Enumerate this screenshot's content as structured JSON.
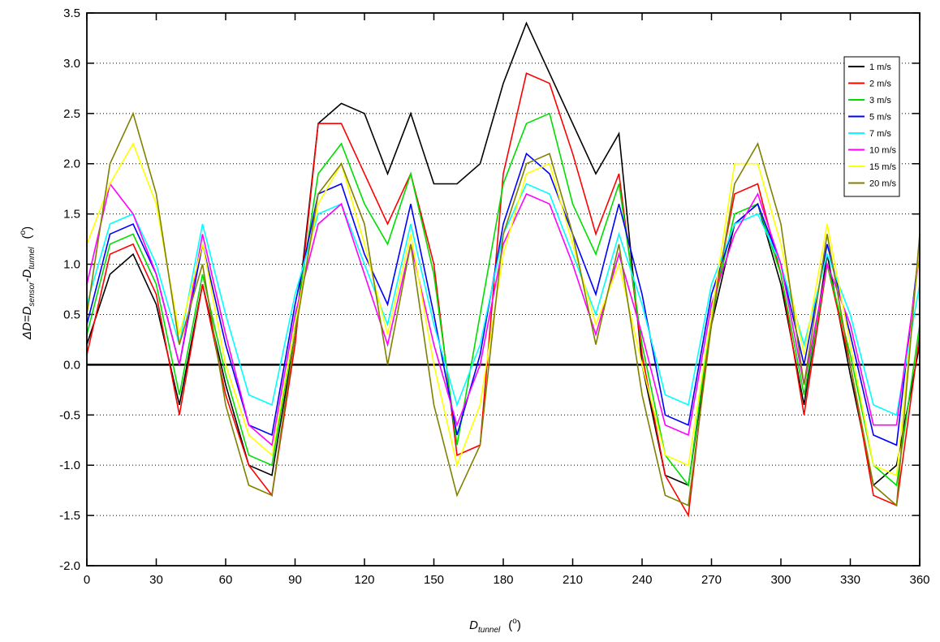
{
  "chart_data": {
    "type": "line",
    "xlabel": [
      "D",
      "tunnel",
      "(",
      "o",
      ")"
    ],
    "ylabel": [
      "ΔD=D",
      "sensor",
      "-D",
      "tunnel",
      "(",
      "o",
      ")"
    ],
    "x": [
      0,
      10,
      20,
      30,
      40,
      50,
      60,
      70,
      80,
      90,
      100,
      110,
      120,
      130,
      140,
      150,
      160,
      170,
      180,
      190,
      200,
      210,
      220,
      230,
      240,
      250,
      260,
      270,
      280,
      290,
      300,
      310,
      320,
      330,
      340,
      350,
      360
    ],
    "xlim": [
      0,
      360
    ],
    "xticks": [
      0,
      30,
      60,
      90,
      120,
      150,
      180,
      210,
      240,
      270,
      300,
      330,
      360
    ],
    "ylim": [
      -2.0,
      3.5
    ],
    "yticks": [
      {
        "value": -2,
        "label": "-2.0"
      },
      -0.5,
      {
        "value": -1,
        "label": "-1.0"
      },
      -1.5,
      {
        "value": 0,
        "label": "0.0"
      },
      0.5,
      {
        "value": 1,
        "label": "1.0"
      },
      1.5,
      {
        "value": 2,
        "label": "2.0"
      },
      2.5,
      {
        "value": 3,
        "label": "3.0"
      },
      3.5
    ],
    "grid": true,
    "legend": "top-right",
    "series": [
      {
        "name": "1 m/s",
        "color": "#000000",
        "values": [
          0.2,
          0.9,
          1.1,
          0.6,
          -0.4,
          0.8,
          -0.2,
          -1.0,
          -1.1,
          0.3,
          2.4,
          2.6,
          2.5,
          1.9,
          2.5,
          1.8,
          1.8,
          2.0,
          2.8,
          3.4,
          2.9,
          2.4,
          1.9,
          2.3,
          0.0,
          -1.1,
          -1.2,
          0.4,
          1.4,
          1.6,
          0.8,
          -0.4,
          1.1,
          -0.1,
          -1.2,
          -1.0,
          0.2
        ]
      },
      {
        "name": "2 m/s",
        "color": "#ff0000",
        "values": [
          0.1,
          1.1,
          1.2,
          0.7,
          -0.5,
          0.8,
          -0.3,
          -1.0,
          -1.3,
          0.2,
          2.4,
          2.4,
          1.9,
          1.4,
          1.9,
          1.0,
          -0.9,
          -0.8,
          1.9,
          2.9,
          2.8,
          2.1,
          1.3,
          1.9,
          0.1,
          -1.1,
          -1.5,
          0.5,
          1.7,
          1.8,
          0.9,
          -0.5,
          1.0,
          0.0,
          -1.3,
          -1.4,
          0.3
        ]
      },
      {
        "name": "3 m/s",
        "color": "#00dd00",
        "values": [
          0.3,
          1.2,
          1.3,
          0.8,
          -0.3,
          0.9,
          -0.1,
          -0.9,
          -1.0,
          0.4,
          1.9,
          2.2,
          1.6,
          1.2,
          1.9,
          0.9,
          -0.8,
          0.5,
          1.8,
          2.4,
          2.5,
          1.6,
          1.1,
          1.8,
          0.2,
          -0.9,
          -1.2,
          0.5,
          1.5,
          1.6,
          0.9,
          -0.3,
          1.0,
          0.1,
          -1.0,
          -1.2,
          0.4
        ]
      },
      {
        "name": "5 m/s",
        "color": "#0000ff",
        "values": [
          0.4,
          1.3,
          1.4,
          0.9,
          0.0,
          1.2,
          0.2,
          -0.6,
          -0.7,
          0.6,
          1.7,
          1.8,
          1.1,
          0.6,
          1.6,
          0.5,
          -0.7,
          0.1,
          1.4,
          2.1,
          1.9,
          1.3,
          0.7,
          1.6,
          0.7,
          -0.5,
          -0.6,
          0.7,
          1.4,
          1.6,
          1.0,
          0.0,
          1.2,
          0.3,
          -0.7,
          -0.8,
          1.2
        ]
      },
      {
        "name": "7 m/s",
        "color": "#00ffff",
        "values": [
          0.6,
          1.4,
          1.5,
          1.0,
          0.2,
          1.4,
          0.5,
          -0.3,
          -0.4,
          0.7,
          1.5,
          1.6,
          1.0,
          0.4,
          1.4,
          0.4,
          -0.4,
          0.2,
          1.3,
          1.8,
          1.7,
          1.1,
          0.5,
          1.3,
          0.6,
          -0.3,
          -0.4,
          0.8,
          1.4,
          1.5,
          1.0,
          0.2,
          1.1,
          0.5,
          -0.4,
          -0.5,
          0.8
        ]
      },
      {
        "name": "10 m/s",
        "color": "#ff00ff",
        "values": [
          0.8,
          1.8,
          1.5,
          0.9,
          0.0,
          1.3,
          0.3,
          -0.6,
          -0.8,
          0.5,
          1.4,
          1.6,
          0.9,
          0.2,
          1.2,
          0.2,
          -0.6,
          0.0,
          1.2,
          1.7,
          1.6,
          1.0,
          0.3,
          1.1,
          0.3,
          -0.6,
          -0.7,
          0.6,
          1.3,
          1.7,
          1.0,
          -0.2,
          1.0,
          0.4,
          -0.6,
          -0.6,
          1.1
        ]
      },
      {
        "name": "15 m/s",
        "color": "#ffff00",
        "values": [
          1.2,
          1.8,
          2.2,
          1.6,
          0.3,
          1.2,
          0.0,
          -0.7,
          -0.9,
          0.4,
          1.6,
          2.0,
          1.2,
          0.3,
          1.3,
          0.0,
          -1.0,
          -0.4,
          1.1,
          1.9,
          2.0,
          1.2,
          0.4,
          1.0,
          0.0,
          -0.9,
          -1.0,
          0.5,
          2.0,
          2.0,
          1.2,
          0.1,
          1.4,
          0.2,
          -1.0,
          -1.1,
          1.2
        ]
      },
      {
        "name": "20 m/s",
        "color": "#808000",
        "values": [
          0.5,
          2.0,
          2.5,
          1.7,
          0.2,
          1.0,
          -0.4,
          -1.2,
          -1.3,
          0.3,
          1.7,
          2.0,
          1.4,
          0.0,
          1.2,
          -0.4,
          -1.3,
          -0.8,
          1.3,
          2.0,
          2.1,
          1.3,
          0.2,
          1.2,
          -0.3,
          -1.3,
          -1.4,
          0.4,
          1.8,
          2.2,
          1.4,
          -0.2,
          1.3,
          0.0,
          -1.2,
          -1.4,
          1.3
        ]
      }
    ]
  }
}
